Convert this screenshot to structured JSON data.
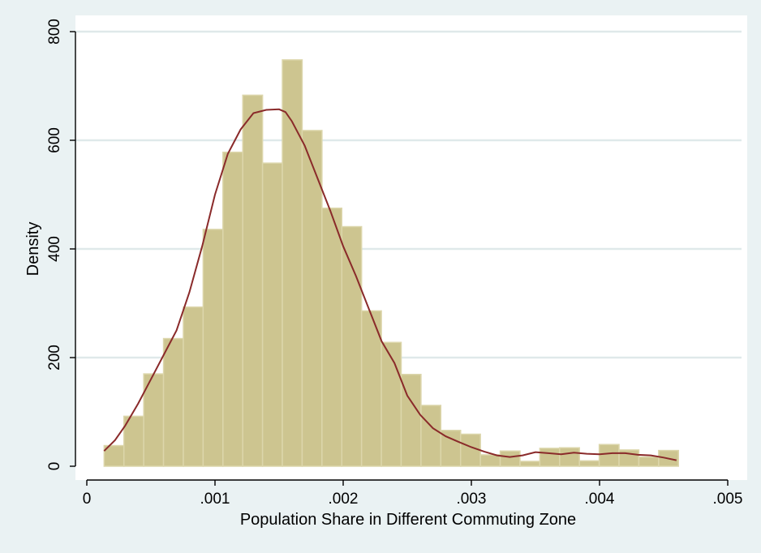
{
  "chart_data": {
    "type": "bar",
    "title": "",
    "xlabel": "Population Share in Different Commuting Zone",
    "ylabel": "Density",
    "xlim": [
      0,
      0.005
    ],
    "ylim": [
      0,
      800
    ],
    "x_ticks": [
      {
        "value": 0,
        "label": "0"
      },
      {
        "value": 0.001,
        "label": ".001"
      },
      {
        "value": 0.002,
        "label": ".002"
      },
      {
        "value": 0.003,
        "label": ".003"
      },
      {
        "value": 0.004,
        "label": ".004"
      },
      {
        "value": 0.005,
        "label": ".005"
      }
    ],
    "y_ticks": [
      {
        "value": 0,
        "label": "0"
      },
      {
        "value": 200,
        "label": "200"
      },
      {
        "value": 400,
        "label": "400"
      },
      {
        "value": 600,
        "label": "600"
      },
      {
        "value": 800,
        "label": "800"
      }
    ],
    "grid": "horizontal",
    "histogram": {
      "bin_start": 0.000135,
      "bin_width": 0.0001545,
      "values": [
        38,
        92,
        170,
        235,
        293,
        436,
        578,
        683,
        558,
        748,
        618,
        475,
        441,
        286,
        228,
        169,
        112,
        66,
        59,
        21,
        28,
        9,
        33,
        34,
        10,
        40,
        30,
        17,
        29
      ],
      "fill": "#cdc590",
      "edge": "#dcd6ab"
    },
    "density_curve": {
      "color": "#8a2a2a",
      "x": [
        0.000135,
        0.00022,
        0.0003,
        0.0004,
        0.0005,
        0.0006,
        0.0007,
        0.0008,
        0.0009,
        0.001,
        0.0011,
        0.0012,
        0.0013,
        0.0014,
        0.0015,
        0.00155,
        0.0016,
        0.0017,
        0.0018,
        0.0019,
        0.002,
        0.0021,
        0.0022,
        0.0023,
        0.0024,
        0.0025,
        0.0026,
        0.0027,
        0.0028,
        0.0029,
        0.003,
        0.0031,
        0.0032,
        0.0033,
        0.0034,
        0.0035,
        0.0036,
        0.0037,
        0.0038,
        0.0039,
        0.004,
        0.0041,
        0.0042,
        0.0043,
        0.0044,
        0.0045,
        0.0046
      ],
      "y": [
        28,
        48,
        75,
        115,
        160,
        205,
        250,
        320,
        405,
        500,
        575,
        620,
        650,
        656,
        657,
        652,
        635,
        590,
        530,
        470,
        405,
        350,
        290,
        230,
        190,
        130,
        95,
        70,
        55,
        45,
        35,
        27,
        20,
        17,
        20,
        26,
        24,
        22,
        25,
        23,
        22,
        24,
        24,
        21,
        20,
        16,
        11
      ]
    }
  }
}
